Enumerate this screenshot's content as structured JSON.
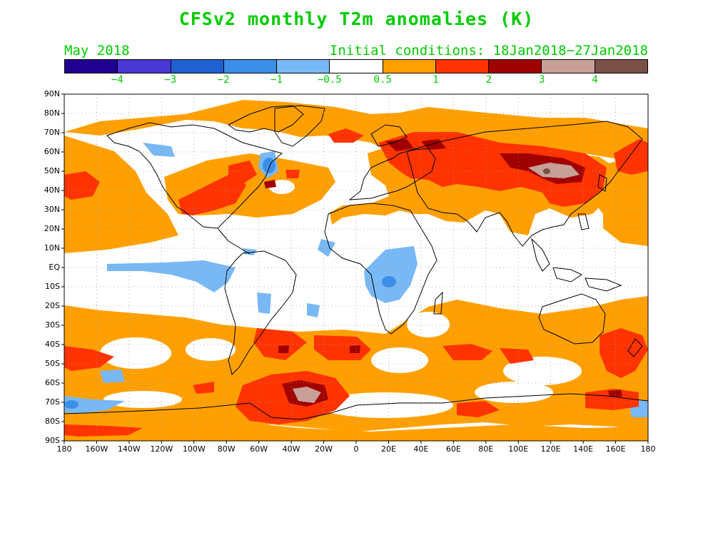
{
  "title": "CFSv2 monthly T2m anomalies (K)",
  "valid_month": "May 2018",
  "initial_conditions": "Initial conditions: 18Jan2018−27Jan2018",
  "text_color": "#00cc00",
  "legend": {
    "colors": [
      "#1f0090",
      "#4b37d6",
      "#1f60d2",
      "#3b8fe8",
      "#78b8f5",
      "#ffffff",
      "#ffa000",
      "#ff3300",
      "#a00000",
      "#c8a098",
      "#7a5046"
    ],
    "ticks": [
      "−4",
      "−3",
      "−2",
      "−1",
      "−0.5",
      "0.5",
      "1",
      "2",
      "3",
      "4"
    ]
  },
  "lat_labels": [
    "90N",
    "80N",
    "70N",
    "60N",
    "50N",
    "40N",
    "30N",
    "20N",
    "10N",
    "EQ",
    "10S",
    "20S",
    "30S",
    "40S",
    "50S",
    "60S",
    "70S",
    "80S",
    "90S"
  ],
  "lon_labels": [
    "180",
    "160W",
    "140W",
    "120W",
    "100W",
    "80W",
    "60W",
    "40W",
    "20W",
    "0",
    "20E",
    "40E",
    "60E",
    "80E",
    "100E",
    "120E",
    "140E",
    "160E",
    "180"
  ]
}
